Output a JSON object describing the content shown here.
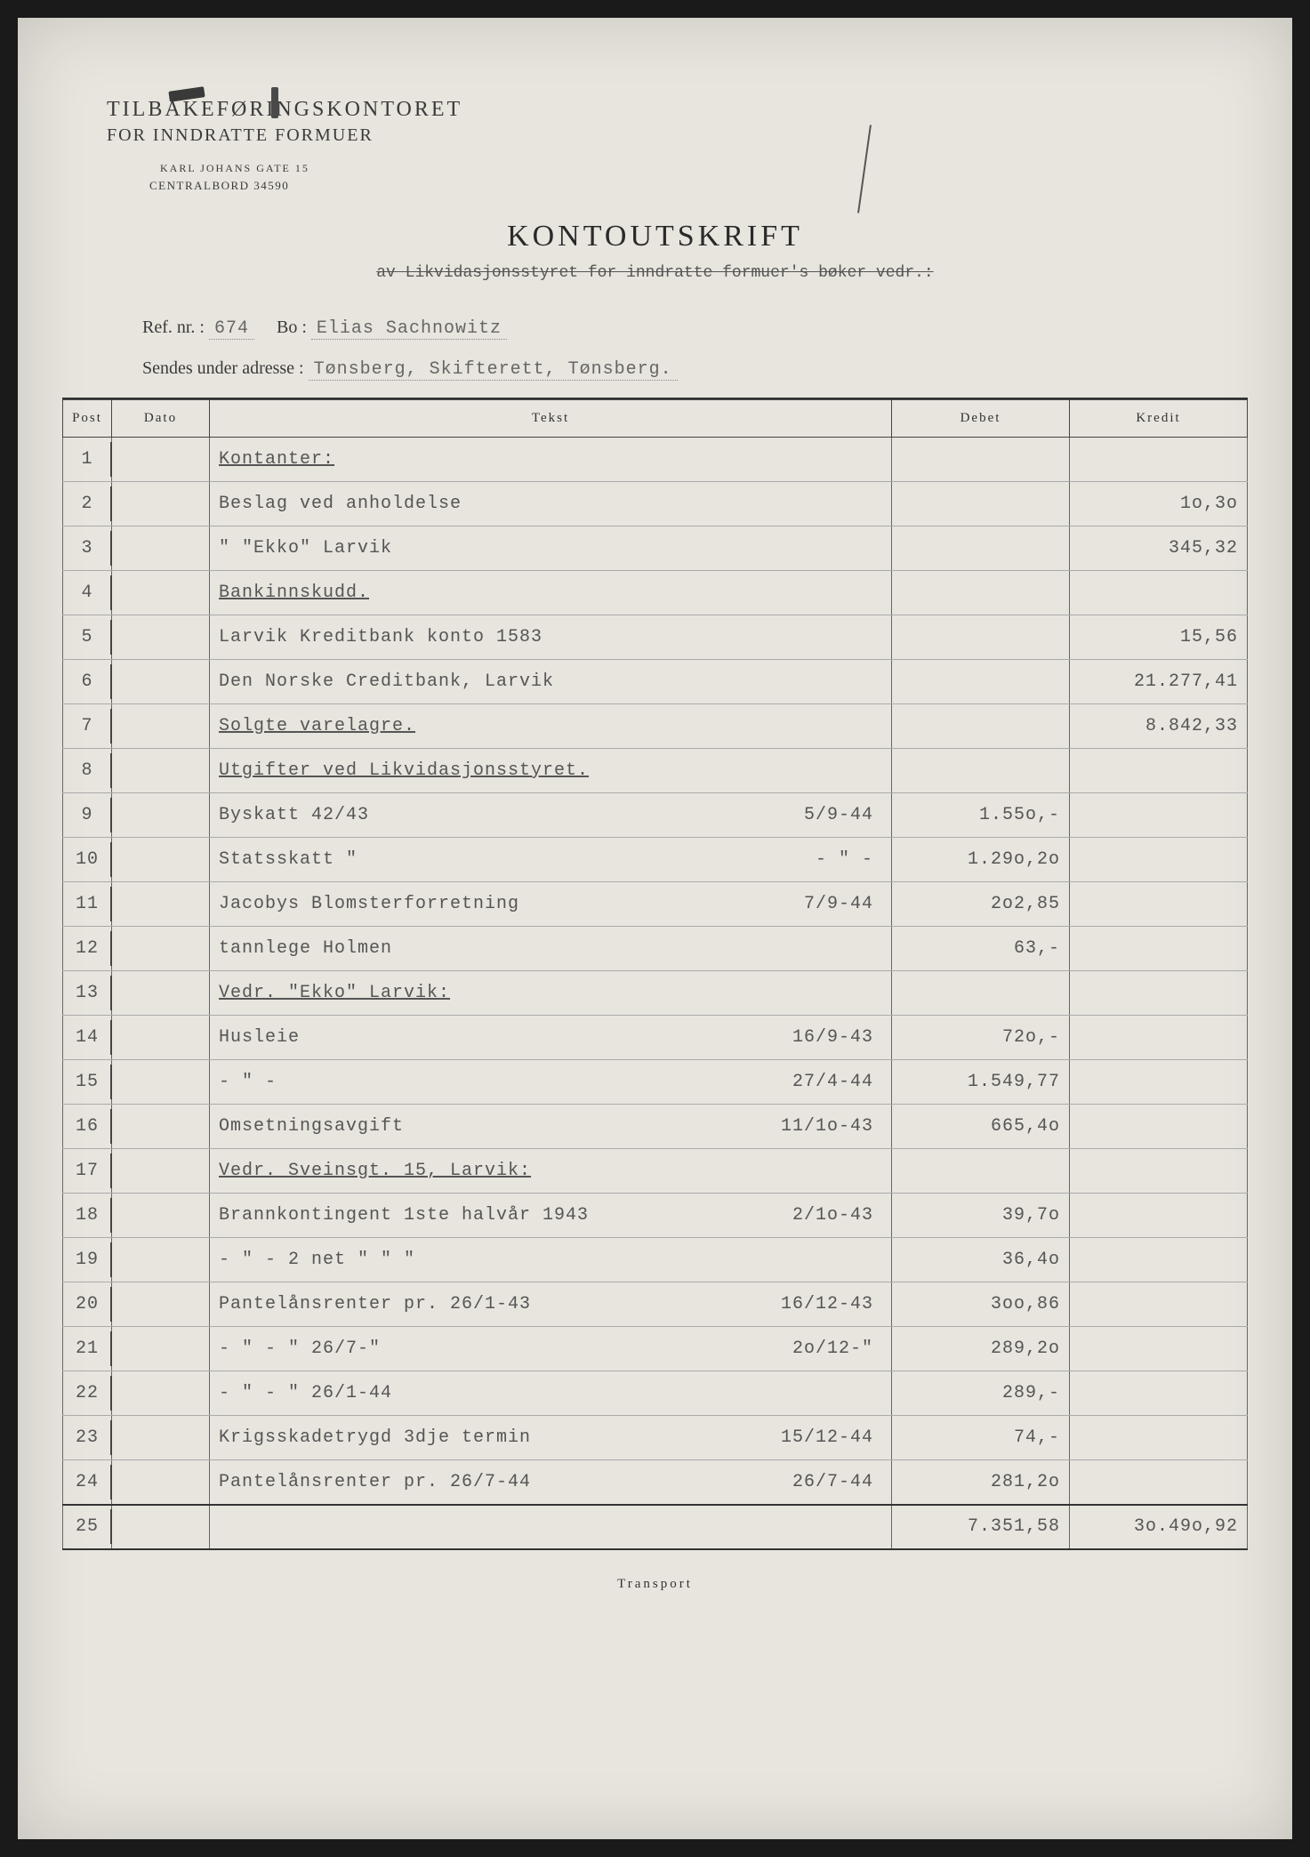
{
  "org": {
    "name": "TILBAKEFØRINGSKONTORET",
    "sub": "FOR INNDRATTE FORMUER",
    "addr": "KARL JOHANS GATE 15",
    "phone": "CENTRALBORD 34590"
  },
  "title": "KONTOUTSKRIFT",
  "subtitle": "av Likvidasjonsstyret for inndratte formuer's bøker vedr.:",
  "ref": {
    "label_ref": "Ref. nr. :",
    "ref_nr": "674",
    "label_bo": "Bo :",
    "bo": "Elias Sachnowitz",
    "label_addr": "Sendes under adresse :",
    "addr": "Tønsberg, Skifterett, Tønsberg."
  },
  "columns": {
    "post": "Post",
    "dato": "Dato",
    "tekst": "Tekst",
    "debet": "Debet",
    "kredit": "Kredit"
  },
  "rows": [
    {
      "n": "1",
      "tekst": "Kontanter:",
      "u": true
    },
    {
      "n": "2",
      "tekst": "Beslag ved anholdelse",
      "kredit": "1o,3o"
    },
    {
      "n": "3",
      "tekst": "  \"   \"Ekko\" Larvik",
      "kredit": "345,32"
    },
    {
      "n": "4",
      "tekst": "Bankinnskudd.",
      "u": true
    },
    {
      "n": "5",
      "tekst": "Larvik Kreditbank konto 1583",
      "kredit": "15,56"
    },
    {
      "n": "6",
      "tekst": "Den Norske Creditbank, Larvik",
      "kredit": "21.277,41"
    },
    {
      "n": "7",
      "tekst": "Solgte varelagre.",
      "u": true,
      "kredit": "8.842,33"
    },
    {
      "n": "8",
      "tekst": "Utgifter ved Likvidasjonsstyret.",
      "u": true
    },
    {
      "n": "9",
      "tekst": "Byskatt 42/43",
      "date": "5/9-44",
      "debet": "1.55o,-"
    },
    {
      "n": "10",
      "tekst": "Statsskatt \"",
      "date": "-  \"  -",
      "debet": "1.29o,2o"
    },
    {
      "n": "11",
      "tekst": "Jacobys Blomsterforretning",
      "date": "7/9-44",
      "debet": "2o2,85"
    },
    {
      "n": "12",
      "tekst": "tannlege Holmen",
      "debet": "63,-"
    },
    {
      "n": "13",
      "tekst": "Vedr. \"Ekko\" Larvik:",
      "u": true
    },
    {
      "n": "14",
      "tekst": "Husleie",
      "date": "16/9-43",
      "debet": "72o,-"
    },
    {
      "n": "15",
      "tekst": "-  \"  -",
      "date": "27/4-44",
      "debet": "1.549,77"
    },
    {
      "n": "16",
      "tekst": "Omsetningsavgift",
      "date": "11/1o-43",
      "debet": "665,4o"
    },
    {
      "n": "17",
      "tekst": "Vedr. Sveinsgt. 15, Larvik:",
      "u": true
    },
    {
      "n": "18",
      "tekst": "Brannkontingent 1ste halvår 1943",
      "date": "2/1o-43",
      "debet": "39,7o"
    },
    {
      "n": "19",
      "tekst": "  -   \"   -    2 net  \"   \"   \"",
      "debet": "36,4o"
    },
    {
      "n": "20",
      "tekst": "Pantelånsrenter pr. 26/1-43",
      "date": "16/12-43",
      "debet": "3oo,86"
    },
    {
      "n": "21",
      "tekst": "  -   \"   -     \"  26/7-\"",
      "date": "2o/12-\"",
      "debet": "289,2o"
    },
    {
      "n": "22",
      "tekst": "  -   \"   -     \"  26/1-44",
      "debet": "289,-"
    },
    {
      "n": "23",
      "tekst": "Krigsskadetrygd 3dje termin",
      "date": "15/12-44",
      "debet": "74,-"
    },
    {
      "n": "24",
      "tekst": "Pantelånsrenter pr. 26/7-44",
      "date": "26/7-44",
      "debet": "281,2o"
    },
    {
      "n": "25",
      "tekst": "",
      "debet": "7.351,58",
      "kredit": "3o.49o,92",
      "total": true
    }
  ],
  "transport": "Transport",
  "colors": {
    "paper": "#e8e5de",
    "ink": "#3a3a3a",
    "typed": "#666666",
    "rule": "#444444"
  }
}
